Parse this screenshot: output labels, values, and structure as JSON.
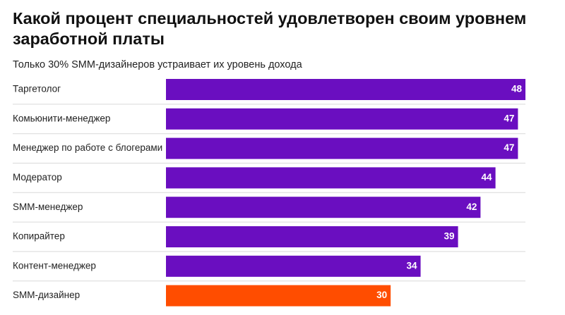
{
  "colors": {
    "bar": "#6a0ec0",
    "highlight": "#ff4d00",
    "divider": "#d9d9d9",
    "value_text": "#ffffff"
  },
  "chart_data": {
    "type": "bar",
    "orientation": "horizontal",
    "title": "Какой процент специальностей удовлетворен своим уровнем заработной платы",
    "subtitle": "Только 30% SMM-дизайнеров устраивает их уровень дохода",
    "categories": [
      "Таргетолог",
      "Комьюнити-менеджер",
      "Менеджер по работе с блогерами",
      "Модератор",
      "SMM-менеджер",
      "Копирайтер",
      "Контент-менеджер",
      "SMM-дизайнер"
    ],
    "values": [
      48,
      47,
      47,
      44,
      42,
      39,
      34,
      30
    ],
    "highlighted_category": "SMM-дизайнер",
    "xlim": [
      0,
      48
    ],
    "grid": false,
    "legend": "none",
    "xlabel": "",
    "ylabel": ""
  }
}
